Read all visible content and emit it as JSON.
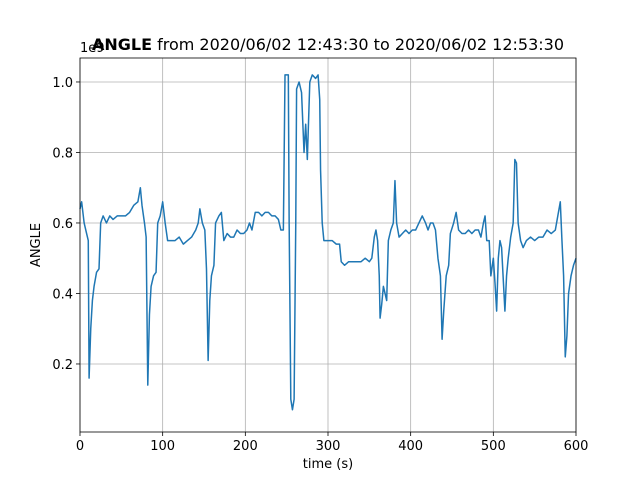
{
  "chart_data": {
    "type": "line",
    "title_bold": "ANGLE",
    "title": "from 2020/06/02 12:43:30 to 2020/06/02 12:53:30",
    "x_label": "time (s)",
    "y_label": "ANGLE",
    "y_offset": "1e9",
    "xlim": [
      0,
      600
    ],
    "xticks": [
      0,
      100,
      200,
      300,
      400,
      500,
      600
    ],
    "ylim": [
      0.007,
      1.068
    ],
    "yticks": [
      0.2,
      0.4,
      0.6,
      0.8,
      {
        "value": 1.0,
        "label": "1.0"
      }
    ],
    "grid": true,
    "x": [
      0,
      2,
      5,
      8,
      10,
      11,
      13,
      15,
      17,
      20,
      23,
      25,
      28,
      32,
      36,
      40,
      45,
      50,
      55,
      60,
      65,
      70,
      73,
      75,
      78,
      80,
      82,
      84,
      86,
      89,
      92,
      94,
      97,
      100,
      103,
      106,
      110,
      115,
      120,
      125,
      130,
      135,
      140,
      143,
      145,
      148,
      151,
      153,
      155,
      157,
      159,
      162,
      164,
      168,
      171,
      174,
      178,
      182,
      186,
      190,
      194,
      198,
      202,
      205,
      208,
      212,
      216,
      220,
      224,
      228,
      232,
      236,
      240,
      243,
      246,
      248,
      252,
      253,
      255,
      257,
      259,
      261,
      262,
      265,
      268,
      271,
      273,
      275,
      278,
      281,
      285,
      288,
      290,
      291,
      293,
      295,
      300,
      305,
      310,
      314,
      316,
      320,
      325,
      330,
      335,
      340,
      345,
      350,
      353,
      356,
      358,
      360,
      362,
      363,
      365,
      367,
      369,
      371,
      373,
      376,
      379,
      381,
      383,
      386,
      390,
      394,
      398,
      402,
      406,
      410,
      414,
      418,
      421,
      424,
      427,
      430,
      433,
      436,
      438,
      440,
      443,
      446,
      448,
      452,
      455,
      458,
      462,
      466,
      470,
      474,
      478,
      482,
      485,
      488,
      490,
      492,
      495,
      497,
      500,
      502,
      504,
      506,
      508,
      510,
      514,
      516,
      518,
      521,
      524,
      526,
      528,
      530,
      533,
      536,
      540,
      545,
      550,
      555,
      560,
      565,
      570,
      575,
      578,
      581,
      583,
      585,
      587,
      589,
      591,
      594,
      597,
      600
    ],
    "series": [
      {
        "name": "ANGLE",
        "color": "#1f77b4",
        "values": [
          0.64,
          0.66,
          0.6,
          0.57,
          0.55,
          0.16,
          0.3,
          0.38,
          0.42,
          0.46,
          0.47,
          0.6,
          0.62,
          0.6,
          0.62,
          0.61,
          0.62,
          0.62,
          0.62,
          0.63,
          0.65,
          0.66,
          0.7,
          0.65,
          0.6,
          0.56,
          0.14,
          0.34,
          0.42,
          0.45,
          0.46,
          0.6,
          0.62,
          0.66,
          0.6,
          0.55,
          0.55,
          0.55,
          0.56,
          0.54,
          0.55,
          0.56,
          0.58,
          0.6,
          0.64,
          0.6,
          0.58,
          0.47,
          0.21,
          0.38,
          0.45,
          0.48,
          0.6,
          0.62,
          0.63,
          0.55,
          0.57,
          0.56,
          0.56,
          0.58,
          0.57,
          0.57,
          0.58,
          0.6,
          0.58,
          0.63,
          0.63,
          0.62,
          0.63,
          0.63,
          0.62,
          0.62,
          0.61,
          0.58,
          0.58,
          1.02,
          1.02,
          0.6,
          0.1,
          0.07,
          0.1,
          0.6,
          0.98,
          1.0,
          0.97,
          0.8,
          0.88,
          0.78,
          1.0,
          1.02,
          1.01,
          1.02,
          0.95,
          0.75,
          0.6,
          0.55,
          0.55,
          0.55,
          0.54,
          0.54,
          0.49,
          0.48,
          0.49,
          0.49,
          0.49,
          0.49,
          0.5,
          0.49,
          0.5,
          0.56,
          0.58,
          0.55,
          0.45,
          0.33,
          0.37,
          0.42,
          0.4,
          0.38,
          0.55,
          0.58,
          0.6,
          0.72,
          0.6,
          0.56,
          0.57,
          0.58,
          0.57,
          0.58,
          0.58,
          0.6,
          0.62,
          0.6,
          0.58,
          0.6,
          0.6,
          0.58,
          0.5,
          0.45,
          0.27,
          0.35,
          0.45,
          0.48,
          0.57,
          0.6,
          0.63,
          0.58,
          0.57,
          0.57,
          0.58,
          0.57,
          0.58,
          0.58,
          0.56,
          0.6,
          0.62,
          0.55,
          0.55,
          0.45,
          0.5,
          0.43,
          0.35,
          0.5,
          0.55,
          0.53,
          0.35,
          0.45,
          0.5,
          0.56,
          0.6,
          0.78,
          0.77,
          0.6,
          0.55,
          0.53,
          0.55,
          0.56,
          0.55,
          0.56,
          0.56,
          0.58,
          0.57,
          0.58,
          0.62,
          0.66,
          0.55,
          0.45,
          0.22,
          0.28,
          0.4,
          0.45,
          0.48,
          0.5
        ]
      }
    ]
  }
}
